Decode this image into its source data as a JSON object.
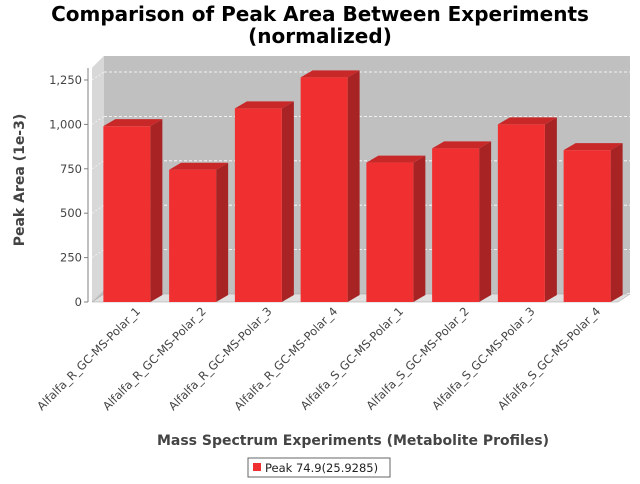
{
  "chart_data": {
    "type": "bar",
    "title": "Comparison of Peak Area Between Experiments\n(normalized)",
    "title_lines": [
      "Comparison of Peak Area Between Experiments",
      "(normalized)"
    ],
    "xlabel": "Mass Spectrum Experiments (Metabolite Profiles)",
    "ylabel": "Peak Area (1e-3)",
    "ylim": [
      0,
      1375
    ],
    "yticks": [
      0,
      250,
      500,
      750,
      1000,
      1250
    ],
    "ytick_labels": [
      "0",
      "250",
      "500",
      "750",
      "1,000",
      "1,250"
    ],
    "grid": true,
    "bars_3d": true,
    "legend_position": "bottom-center",
    "categories": [
      "Alfalfa_R_GC-MS-Polar_1",
      "Alfalfa_R_GC-MS-Polar_2",
      "Alfalfa_R_GC-MS-Polar_3",
      "Alfalfa_R_GC-MS-Polar_4",
      "Alfalfa_S_GC-MS-Polar_1",
      "Alfalfa_S_GC-MS-Polar_2",
      "Alfalfa_S_GC-MS-Polar_3",
      "Alfalfa_S_GC-MS-Polar_4"
    ],
    "series": [
      {
        "name": "Peak 74.9(25.9285)",
        "color": "#f03030",
        "values": [
          990,
          745,
          1090,
          1265,
          785,
          865,
          1000,
          855
        ]
      }
    ],
    "colors": {
      "plot_background": "#c0c0c0",
      "wall_side": "#d8d8d8",
      "floor": "#e0e0e0",
      "bar_front": "#f03030",
      "bar_top": "#c82828",
      "bar_side": "#a82424"
    }
  }
}
